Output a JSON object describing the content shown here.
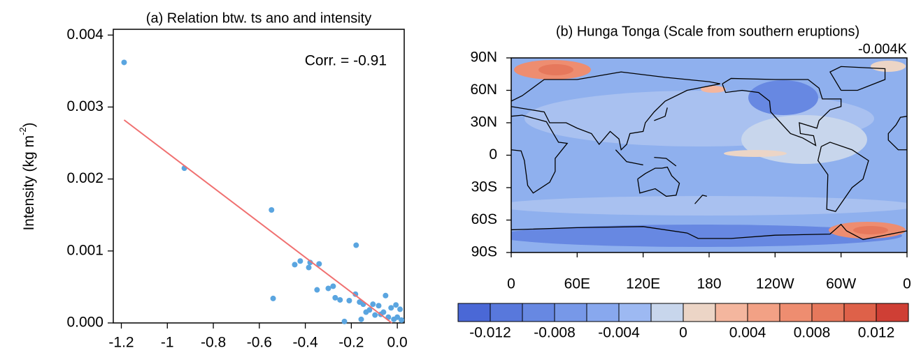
{
  "chart_data": [
    {
      "type": "scatter",
      "title": "(a) Relation btw. ts ano and intensity",
      "annotation": "Corr. = -0.91",
      "ylabel": [
        "Intensity (kg m",
        "-2",
        ")"
      ],
      "xlim": [
        -1.235,
        0.03
      ],
      "ylim": [
        0,
        0.00408
      ],
      "xticks": [
        -1.2,
        -1.0,
        -0.8,
        -0.6,
        -0.4,
        -0.2,
        {
          "value": 0,
          "label": "0.0"
        }
      ],
      "yticks": [
        {
          "value": 0,
          "label": "0.000"
        },
        0.001,
        0.002,
        0.003,
        0.004
      ],
      "series": [
        {
          "type": "scatter",
          "color": "#5aa5e0",
          "x": [
            -1.188,
            -0.926,
            -0.547,
            -0.54,
            -0.446,
            -0.422,
            -0.385,
            -0.379,
            -0.34,
            -0.349,
            -0.3,
            -0.279,
            -0.27,
            -0.249,
            -0.23,
            -0.209,
            -0.179,
            -0.182,
            -0.164,
            -0.148,
            -0.157,
            -0.136,
            -0.121,
            -0.106,
            -0.097,
            -0.081,
            -0.072,
            -0.06,
            -0.051,
            -0.039,
            -0.027,
            -0.015,
            -0.006,
            0,
            0.012,
            0.018
          ],
          "values": [
            0.00362,
            0.00215,
            0.00157,
            0.00034,
            0.00081,
            0.00086,
            0.00077,
            0.00084,
            0.00082,
            0.00046,
            0.00048,
            0.00051,
            0.00035,
            0.00032,
            2e-05,
            0.00031,
            0.00108,
            0.0004,
            0.00029,
            0.00026,
            5e-05,
            0.00015,
            0.00018,
            0.00026,
            0.00011,
            0.00024,
            0.00012,
            0.00015,
            0.00038,
            8e-05,
            0.00021,
            5e-05,
            0.00025,
            8e-05,
            0.00019,
            4e-05
          ]
        },
        {
          "type": "line",
          "color": "#f07070",
          "x": [
            -1.188,
            -0.024
          ],
          "values": [
            0.00282,
            0
          ]
        }
      ]
    },
    {
      "type": "map",
      "title": "(b) Hunga Tonga (Scale from southern eruptions)",
      "annotation": "-0.004K",
      "xlim": [
        0,
        360
      ],
      "ylim": [
        -90,
        90
      ],
      "xticks": [
        0,
        {
          "value": 60,
          "label": "60E"
        },
        {
          "value": 120,
          "label": "120E"
        },
        180,
        {
          "value": 240,
          "label": "120W"
        },
        {
          "value": 300,
          "label": "60W"
        },
        {
          "value": 360,
          "label": "0"
        }
      ],
      "yticks": [
        {
          "value": 90,
          "label": "90N"
        },
        {
          "value": 60,
          "label": "60N"
        },
        {
          "value": 30,
          "label": "30N"
        },
        0,
        {
          "value": -30,
          "label": "30S"
        },
        {
          "value": -60,
          "label": "60S"
        },
        {
          "value": -90,
          "label": "90S"
        }
      ],
      "colorbar": {
        "levels": [
          -0.012,
          -0.01,
          -0.008,
          -0.006,
          -0.004,
          -0.002,
          0,
          0.002,
          0.004,
          0.006,
          0.008,
          0.01,
          0.012
        ],
        "colors": [
          "#4a68d6",
          "#5878dc",
          "#6788e2",
          "#7798e8",
          "#88a8ee",
          "#9db9f2",
          "#c8d6ec",
          "#ecd5c6",
          "#f4b69e",
          "#f2a185",
          "#ee8d70",
          "#e6785c",
          "#de6149",
          "#cf3f35"
        ],
        "ticks": [
          -0.012,
          -0.008,
          -0.004,
          0,
          0.004,
          0.008,
          0.012
        ]
      }
    }
  ]
}
